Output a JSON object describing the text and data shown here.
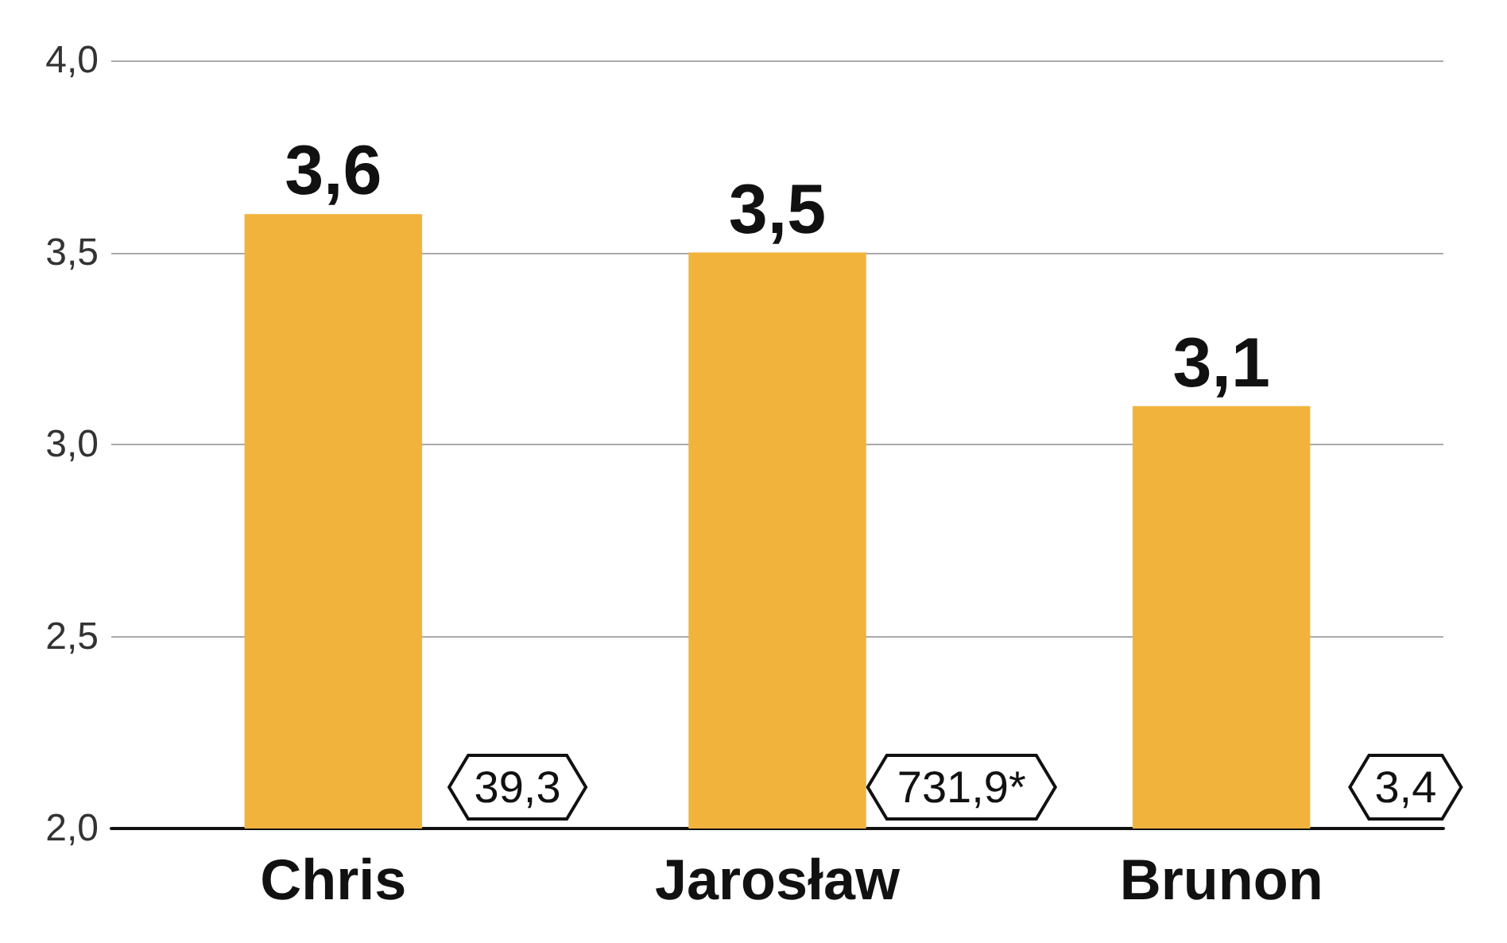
{
  "chart_data": {
    "type": "bar",
    "categories": [
      "Chris",
      "Jarosław",
      "Brunon"
    ],
    "values": [
      3.6,
      3.5,
      3.1
    ],
    "value_labels": [
      "3,6",
      "3,5",
      "3,1"
    ],
    "color": "#f2b33d",
    "ylim": [
      2,
      4
    ],
    "yticks": [
      {
        "value": 2,
        "label": "2,0"
      },
      {
        "value": 2.5,
        "label": "2,5"
      },
      {
        "value": 3,
        "label": "3,0"
      },
      {
        "value": 3.5,
        "label": "3,5"
      },
      {
        "value": 4,
        "label": "4,0"
      }
    ],
    "grid": "y",
    "annotations": [
      "39,3",
      "731,9*",
      "3,4"
    ]
  }
}
